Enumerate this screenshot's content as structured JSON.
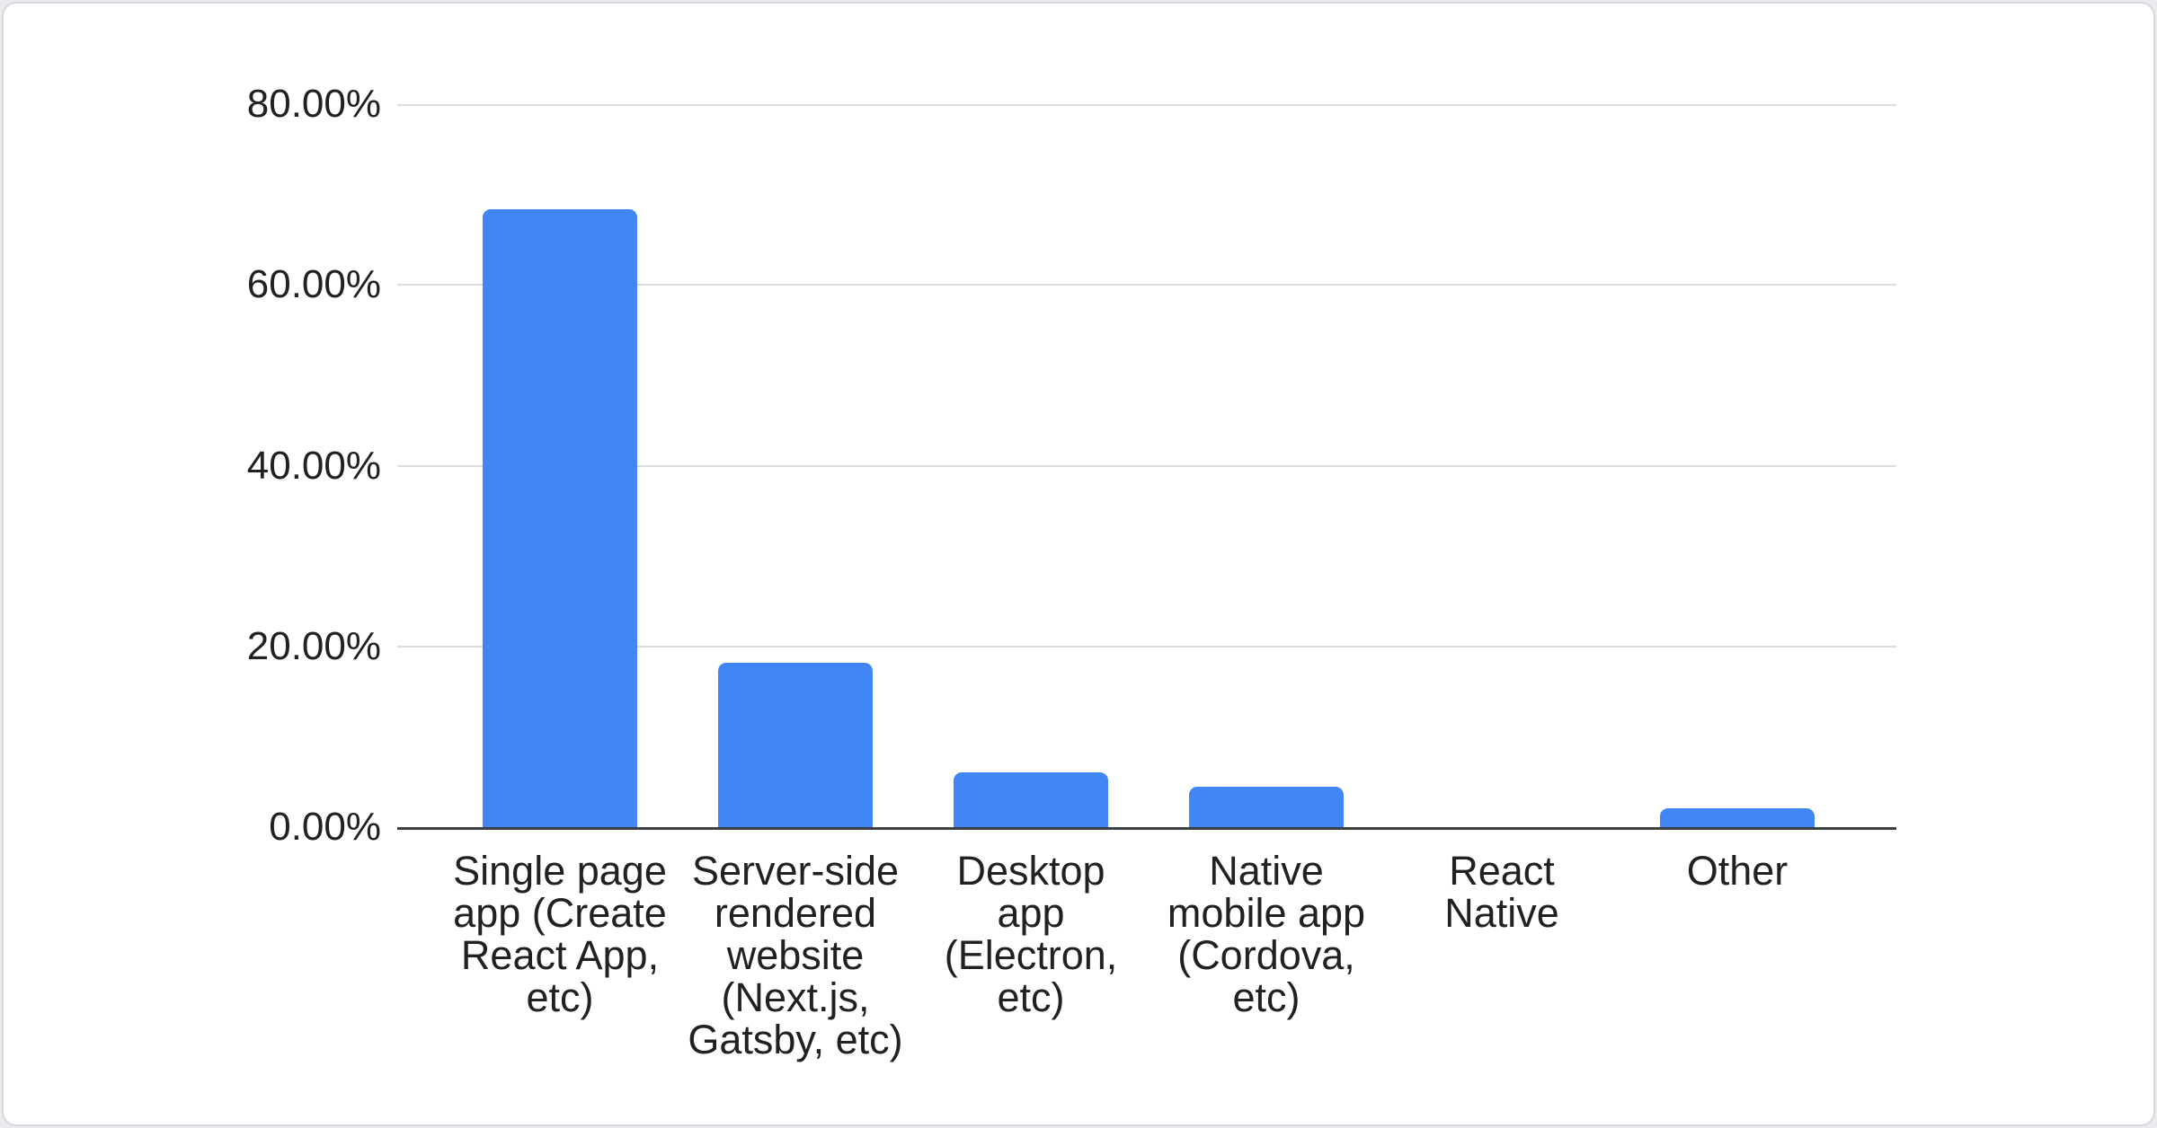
{
  "page": {
    "background_color": "#e9ebee",
    "card": {
      "background_color": "#ffffff",
      "border_color": "#d6d9dd"
    }
  },
  "chart_data": {
    "type": "bar",
    "title": "",
    "categories": [
      "Single page app (Create React App, etc)",
      "Server-side rendered website (Next.js, Gatsby, etc)",
      "Desktop app (Electron, etc)",
      "Native mobile app (Cordova, etc)",
      "React Native",
      "Other"
    ],
    "category_labels_display": [
      "Single page\napp (Create\nReact App,\netc)",
      "Server-side\nrendered\nwebsite\n(Next.js,\nGatsby, etc)",
      "Desktop\napp\n(Electron,\netc)",
      "Native\nmobile app\n(Cordova,\netc)",
      "React\nNative",
      "Other"
    ],
    "values": [
      68.4,
      18.2,
      6.1,
      4.5,
      0,
      2.1
    ],
    "value_unit": "%",
    "xlabel": "",
    "ylabel": "",
    "ylim": [
      0,
      80
    ],
    "ytick_interval": 20,
    "yticks": [
      "80.00%",
      "60.00%",
      "40.00%",
      "20.00%",
      "0.00%"
    ],
    "grid": true,
    "legend": "none",
    "bar_color": "#4285f4",
    "gridline_color": "#dadce0",
    "axis_line_color": "#3c4043",
    "label_text_color": "#202124"
  }
}
